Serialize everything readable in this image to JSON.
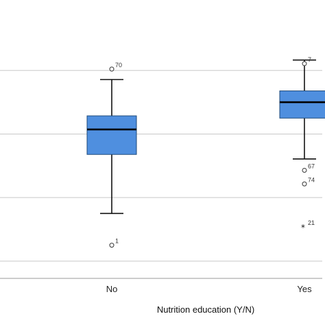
{
  "chart_data": {
    "type": "boxplot",
    "xlabel": "Nutrition education (Y/N)",
    "ylabel": "",
    "categories": [
      "No",
      "Yes"
    ],
    "ylim": [
      0,
      5.8
    ],
    "gridlines": [
      0.35,
      1.75,
      3.15,
      4.55
    ],
    "grid": true,
    "legend": "none",
    "box_color": "#4f8fdf",
    "box_stroke": "#1e4a7a",
    "series": [
      {
        "category": "No",
        "whisker_low": 1.4,
        "q1": 2.7,
        "median": 3.25,
        "q3": 3.55,
        "whisker_high": 4.35,
        "outliers": [
          {
            "value": 4.58,
            "label": "70",
            "marker": "circle"
          },
          {
            "value": 0.7,
            "label": "1",
            "marker": "circle"
          }
        ]
      },
      {
        "category": "Yes",
        "whisker_low": 2.6,
        "q1": 3.5,
        "median": 3.85,
        "q3": 4.1,
        "whisker_high": 4.78,
        "outliers": [
          {
            "value": 4.7,
            "label": "7",
            "marker": "circle"
          },
          {
            "value": 2.35,
            "label": "67",
            "marker": "circle"
          },
          {
            "value": 2.05,
            "label": "74",
            "marker": "circle"
          },
          {
            "value": 1.1,
            "label": "21",
            "marker": "star"
          }
        ]
      }
    ]
  }
}
